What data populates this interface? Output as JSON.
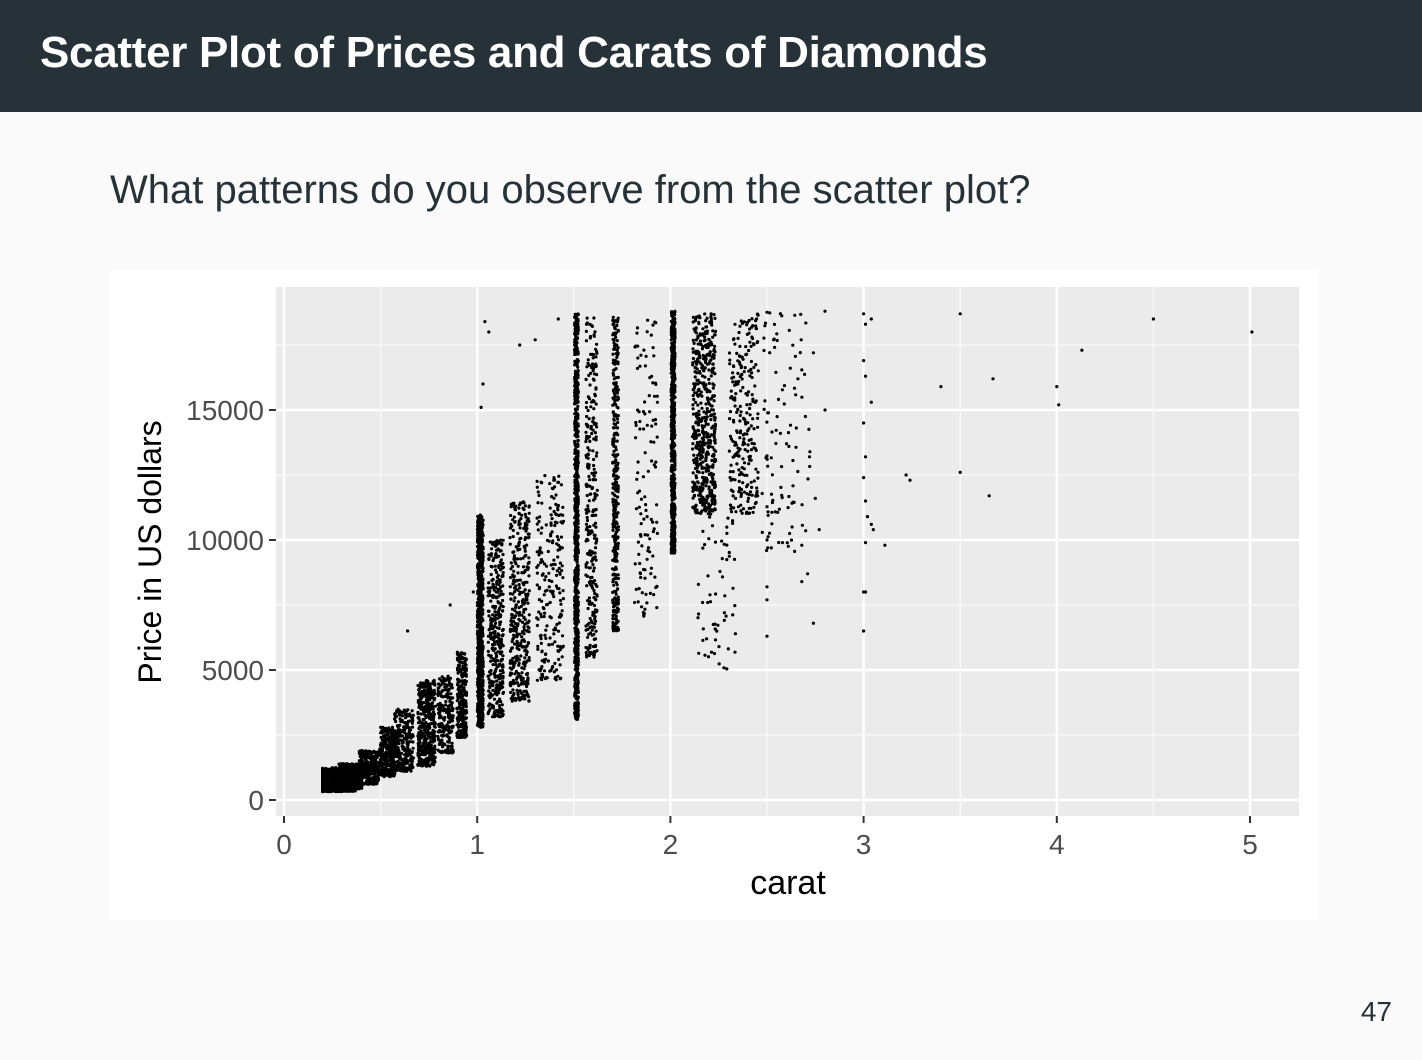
{
  "slide": {
    "title": "Scatter Plot of Prices and Carats of Diamonds",
    "question": "What patterns do you observe from the scatter plot?",
    "page_number": "47"
  },
  "colors": {
    "header_bg": "#263238",
    "panel_bg": "#ebebeb",
    "point": "#000000"
  },
  "chart_data": {
    "type": "scatter",
    "xlabel": "carat",
    "ylabel": "Price in US dollars",
    "xlim": [
      0.2,
      5.01
    ],
    "ylim": [
      326,
      18823
    ],
    "xticks": [
      0,
      1,
      2,
      3,
      4,
      5
    ],
    "yticks": [
      0,
      5000,
      10000,
      15000
    ],
    "grid": true,
    "legend": "none",
    "clusters": [
      {
        "x": 0.23,
        "x_spread": 0.2,
        "y_min": 320,
        "y_max": 1250,
        "count": 650
      },
      {
        "x": 0.32,
        "x_spread": 0.12,
        "y_min": 420,
        "y_max": 1400,
        "count": 500
      },
      {
        "x": 0.42,
        "x_spread": 0.1,
        "y_min": 600,
        "y_max": 1900,
        "count": 280
      },
      {
        "x": 0.52,
        "x_spread": 0.08,
        "y_min": 900,
        "y_max": 2800,
        "count": 320
      },
      {
        "x": 0.6,
        "x_spread": 0.1,
        "y_min": 1100,
        "y_max": 3500,
        "count": 260
      },
      {
        "x": 0.72,
        "x_spread": 0.09,
        "y_min": 1300,
        "y_max": 4600,
        "count": 420
      },
      {
        "x": 0.82,
        "x_spread": 0.08,
        "y_min": 1800,
        "y_max": 4800,
        "count": 200
      },
      {
        "x": 0.91,
        "x_spread": 0.05,
        "y_min": 2400,
        "y_max": 5700,
        "count": 260
      },
      {
        "x": 1.01,
        "x_spread": 0.03,
        "y_min": 2800,
        "y_max": 11000,
        "count": 800
      },
      {
        "x": 1.08,
        "x_spread": 0.08,
        "y_min": 3200,
        "y_max": 10000,
        "count": 350
      },
      {
        "x": 1.2,
        "x_spread": 0.1,
        "y_min": 3800,
        "y_max": 11500,
        "count": 380
      },
      {
        "x": 1.35,
        "x_spread": 0.14,
        "y_min": 4600,
        "y_max": 12500,
        "count": 220
      },
      {
        "x": 1.51,
        "x_spread": 0.02,
        "y_min": 3100,
        "y_max": 18700,
        "count": 900
      },
      {
        "x": 1.58,
        "x_spread": 0.06,
        "y_min": 5500,
        "y_max": 18600,
        "count": 300
      },
      {
        "x": 1.71,
        "x_spread": 0.03,
        "y_min": 6500,
        "y_max": 18600,
        "count": 350
      },
      {
        "x": 1.85,
        "x_spread": 0.12,
        "y_min": 7000,
        "y_max": 18500,
        "count": 120
      },
      {
        "x": 2.01,
        "x_spread": 0.02,
        "y_min": 9500,
        "y_max": 18800,
        "count": 650
      },
      {
        "x": 2.15,
        "x_spread": 0.12,
        "y_min": 11000,
        "y_max": 18700,
        "count": 550
      },
      {
        "x": 2.35,
        "x_spread": 0.15,
        "y_min": 11000,
        "y_max": 18700,
        "count": 250
      },
      {
        "x": 2.2,
        "x_spread": 0.2,
        "y_min": 5000,
        "y_max": 11000,
        "count": 60
      },
      {
        "x": 2.55,
        "x_spread": 0.25,
        "y_min": 9500,
        "y_max": 18800,
        "count": 100
      }
    ],
    "points": [
      {
        "x": 1.04,
        "y": 18400
      },
      {
        "x": 1.06,
        "y": 18000
      },
      {
        "x": 1.03,
        "y": 16000
      },
      {
        "x": 1.02,
        "y": 15100
      },
      {
        "x": 1.22,
        "y": 17500
      },
      {
        "x": 1.3,
        "y": 17700
      },
      {
        "x": 1.42,
        "y": 18500
      },
      {
        "x": 0.86,
        "y": 7500
      },
      {
        "x": 0.98,
        "y": 8000
      },
      {
        "x": 0.64,
        "y": 6500
      },
      {
        "x": 2.8,
        "y": 18800
      },
      {
        "x": 2.74,
        "y": 17200
      },
      {
        "x": 2.66,
        "y": 16200
      },
      {
        "x": 2.8,
        "y": 15000
      },
      {
        "x": 2.72,
        "y": 13200
      },
      {
        "x": 2.63,
        "y": 10500
      },
      {
        "x": 2.68,
        "y": 9800
      },
      {
        "x": 2.5,
        "y": 10000
      },
      {
        "x": 2.5,
        "y": 8200
      },
      {
        "x": 2.5,
        "y": 7700
      },
      {
        "x": 2.5,
        "y": 6300
      },
      {
        "x": 2.71,
        "y": 8700
      },
      {
        "x": 2.68,
        "y": 8400
      },
      {
        "x": 2.74,
        "y": 6800
      },
      {
        "x": 2.58,
        "y": 9900
      },
      {
        "x": 2.77,
        "y": 10400
      },
      {
        "x": 2.75,
        "y": 11600
      },
      {
        "x": 3.0,
        "y": 18700
      },
      {
        "x": 3.01,
        "y": 18300
      },
      {
        "x": 3.04,
        "y": 18500
      },
      {
        "x": 3.0,
        "y": 16900
      },
      {
        "x": 3.01,
        "y": 16300
      },
      {
        "x": 3.04,
        "y": 15300
      },
      {
        "x": 3.0,
        "y": 14500
      },
      {
        "x": 3.01,
        "y": 13200
      },
      {
        "x": 3.0,
        "y": 12400
      },
      {
        "x": 3.01,
        "y": 11500
      },
      {
        "x": 3.02,
        "y": 10900
      },
      {
        "x": 3.04,
        "y": 10600
      },
      {
        "x": 3.05,
        "y": 10400
      },
      {
        "x": 3.01,
        "y": 9900
      },
      {
        "x": 3.11,
        "y": 9800
      },
      {
        "x": 3.0,
        "y": 8000
      },
      {
        "x": 3.01,
        "y": 8000
      },
      {
        "x": 3.0,
        "y": 6500
      },
      {
        "x": 3.22,
        "y": 12500
      },
      {
        "x": 3.24,
        "y": 12300
      },
      {
        "x": 3.4,
        "y": 15900
      },
      {
        "x": 3.5,
        "y": 18700
      },
      {
        "x": 3.5,
        "y": 12600
      },
      {
        "x": 3.65,
        "y": 11700
      },
      {
        "x": 3.67,
        "y": 16200
      },
      {
        "x": 4.0,
        "y": 15900
      },
      {
        "x": 4.01,
        "y": 15200
      },
      {
        "x": 4.13,
        "y": 17300
      },
      {
        "x": 4.5,
        "y": 18500
      },
      {
        "x": 5.01,
        "y": 18000
      }
    ]
  }
}
